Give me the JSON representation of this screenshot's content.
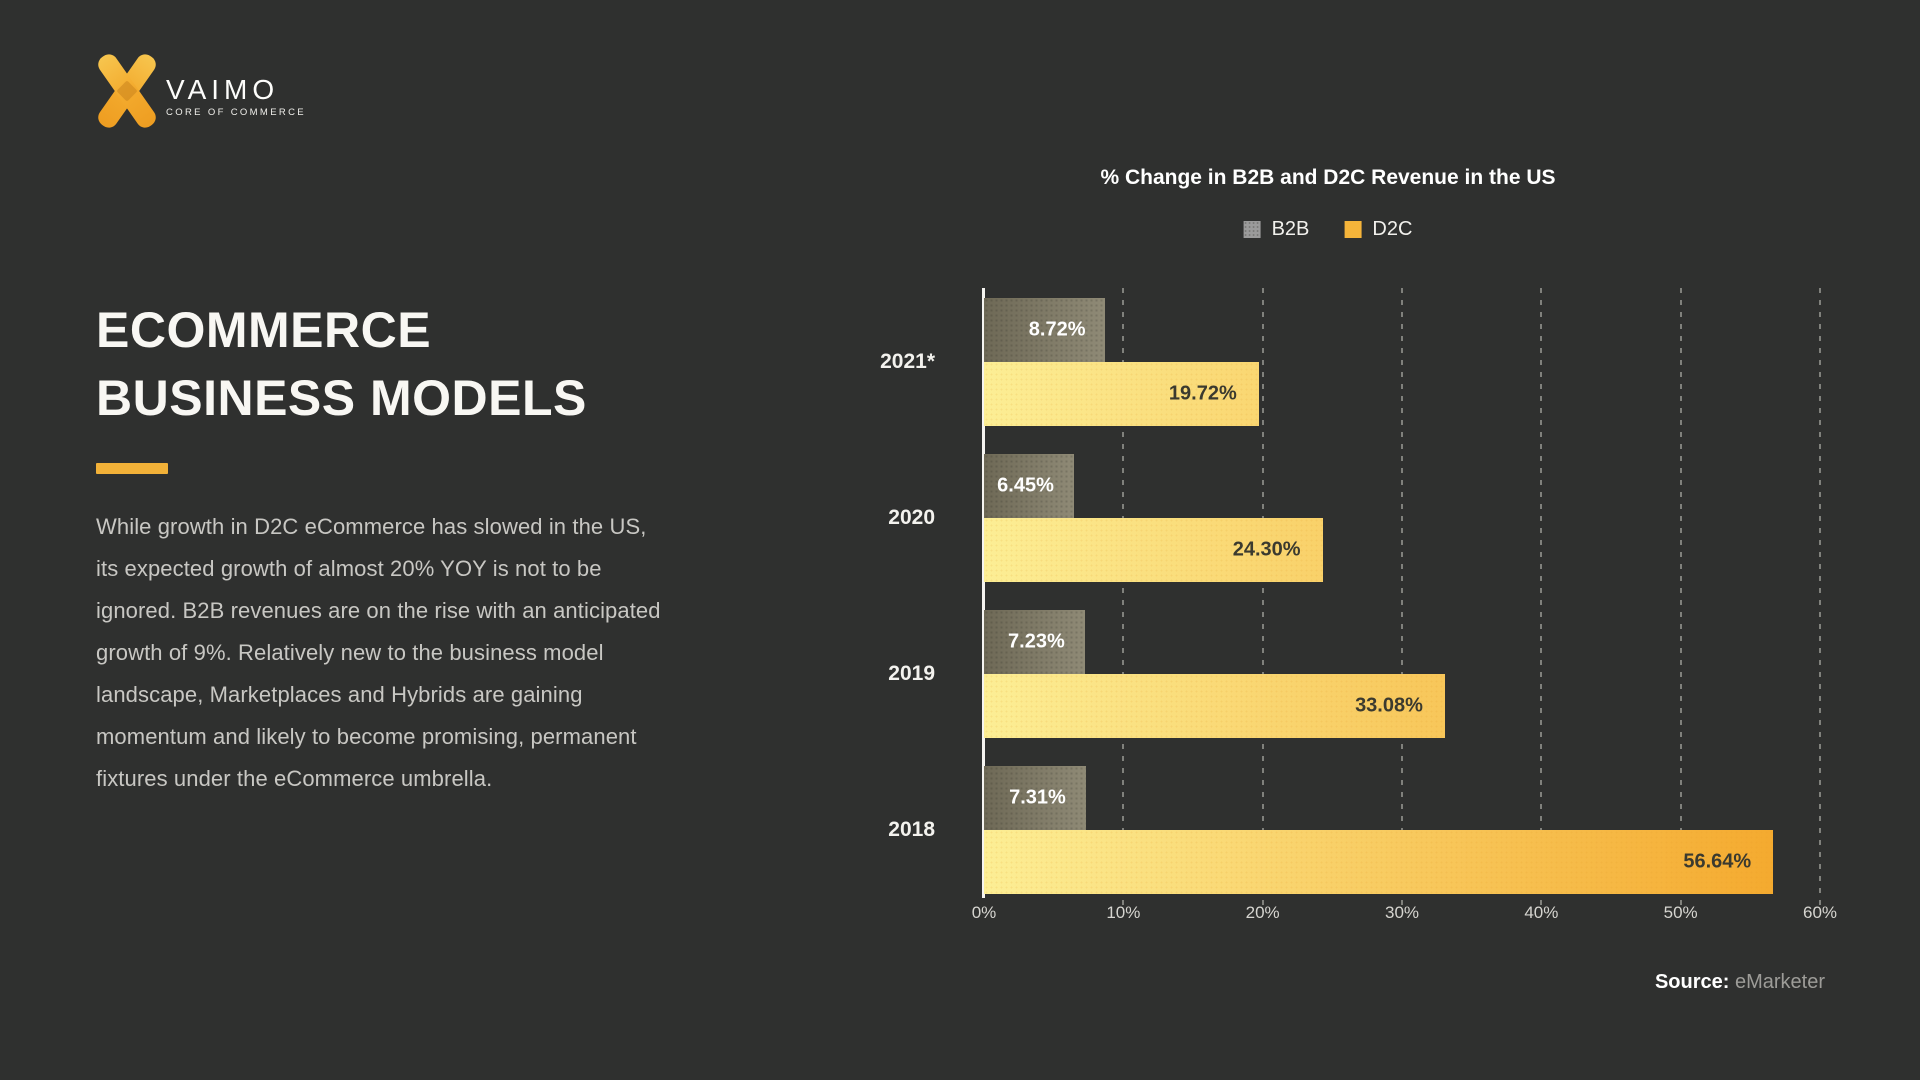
{
  "logo": {
    "brand": "VAIMO",
    "tagline": "CORE OF COMMERCE"
  },
  "intro": {
    "heading_line1": "ECOMMERCE",
    "heading_line2": "BUSINESS MODELS",
    "body": "While growth in D2C eCommerce has slowed in the US, its expected growth of almost 20% YOY is not to be ignored. B2B revenues are on the rise with an anticipated growth of 9%. Relatively new to the business model landscape, Marketplaces and Hybrids are gaining momentum and likely to become promising, permanent fixtures under the eCommerce umbrella.",
    "accent_color": "#f2b138"
  },
  "source": {
    "label": "Source:",
    "value": "eMarketer"
  },
  "colors": {
    "background": "#2f302f",
    "accent_yellow": "#f2b138",
    "axis_line": "#f5f4f0",
    "b2b_label": "#ffffff",
    "d2c_label": "#3b3a2f"
  },
  "chart_data": {
    "type": "bar",
    "orientation": "horizontal",
    "title": "% Change in B2B and D2C Revenue in the US",
    "categories": [
      "2021*",
      "2020",
      "2019",
      "2018"
    ],
    "series": [
      {
        "name": "B2B",
        "swatch": "#9b9b9b",
        "gradient": [
          "#6e6956",
          "#8f8a76"
        ],
        "label_color": "#ffffff",
        "values": [
          8.72,
          6.45,
          7.23,
          7.31
        ]
      },
      {
        "name": "D2C",
        "swatch": "#f5b43a",
        "gradient": [
          "#fcee95",
          "#f4a629"
        ],
        "label_color": "#3b3a2f",
        "values": [
          19.72,
          24.3,
          33.08,
          56.64
        ]
      }
    ],
    "value_suffix": "%",
    "value_decimals": 2,
    "xlim": [
      0,
      60
    ],
    "x_ticks": [
      "0%",
      "10%",
      "20%",
      "30%",
      "40%",
      "50%",
      "60%"
    ],
    "legend_position": "top-center",
    "grid": "dashed-vertical",
    "shared_gradient_for_d2c": true
  }
}
